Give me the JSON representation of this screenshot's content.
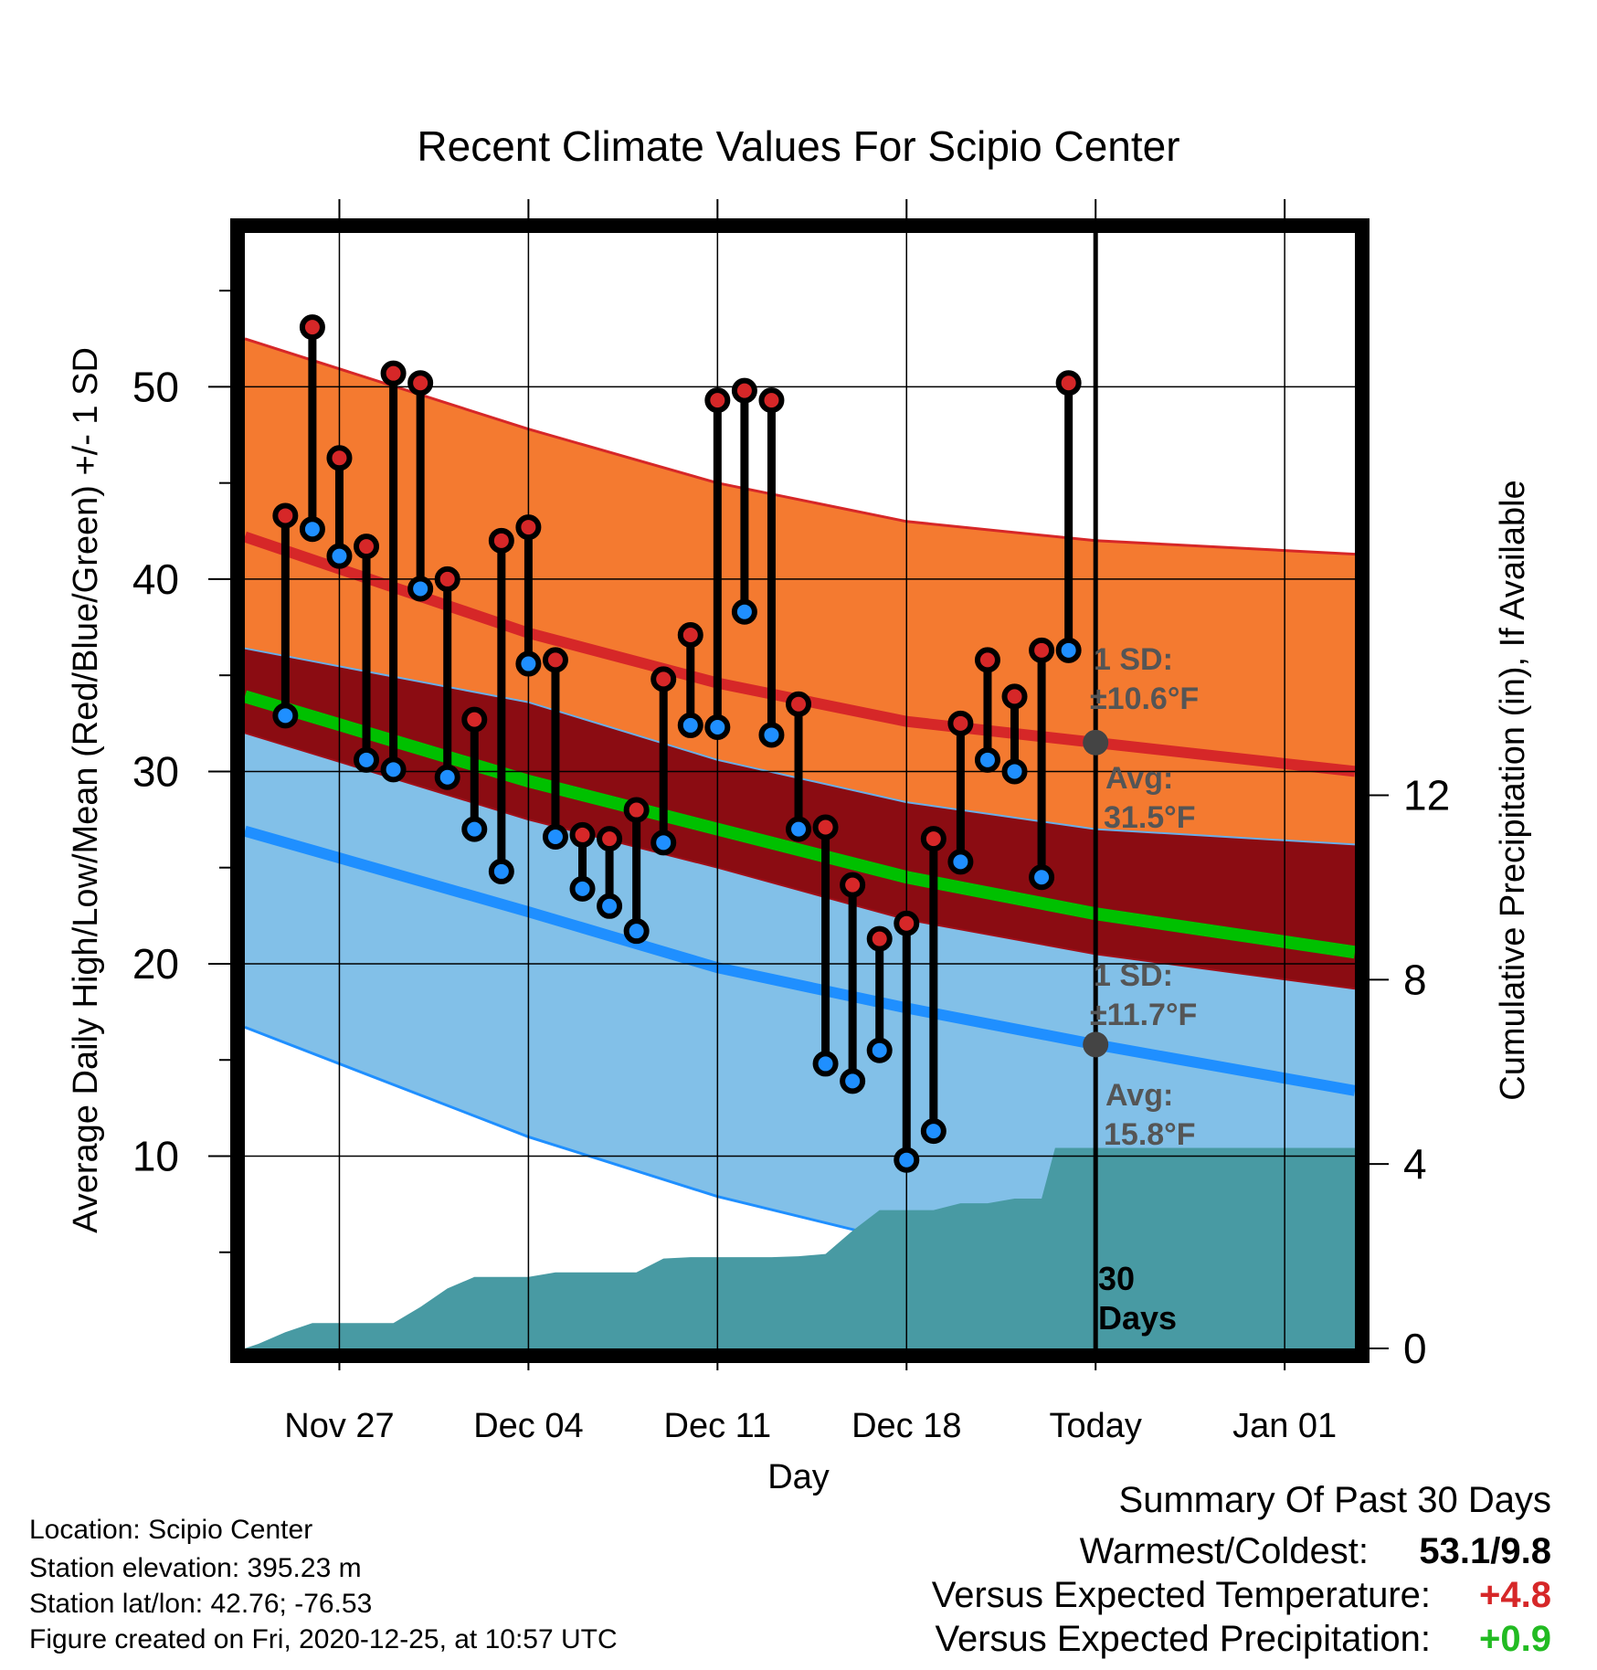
{
  "chart_data": {
    "type": "line",
    "title": "Recent Climate Values For Scipio Center",
    "xlabel": "Day",
    "ylabel": "Average Daily High/Low/Mean (Red/Blue/Green) +/- 1 SD",
    "y2label": "Cumulative Precipitation (in), If Available",
    "ylim": [
      0,
      58
    ],
    "y2lim": [
      0,
      24.2
    ],
    "y_ticks": [
      10,
      20,
      30,
      40,
      50
    ],
    "y2_ticks": [
      0,
      4,
      8,
      12
    ],
    "x_tick_labels": [
      "Nov 27",
      "Dec 04",
      "Dec 11",
      "Dec 18",
      "Today",
      "Jan 01"
    ],
    "x_tick_days": [
      -28,
      -21,
      -14,
      -7,
      0,
      7
    ],
    "x_range_days": [
      -31.5,
      9.6
    ],
    "today_marker_label": "30\nDays",
    "days": [
      -30,
      -29,
      -28,
      -27,
      -26,
      -25,
      -24,
      -23,
      -22,
      -21,
      -20,
      -19,
      -18,
      -17,
      -16,
      -15,
      -14,
      -13,
      -12,
      -11,
      -10,
      -9,
      -8,
      -7,
      -6,
      -5,
      -4,
      -3,
      -2,
      -1
    ],
    "series": [
      {
        "name": "High",
        "color": "#d62728",
        "values": [
          43.3,
          53.1,
          46.3,
          41.7,
          50.7,
          50.2,
          40.0,
          32.7,
          42.0,
          42.7,
          35.8,
          26.7,
          26.5,
          28.0,
          34.8,
          37.1,
          49.3,
          49.8,
          49.3,
          33.5,
          27.1,
          24.1,
          21.3,
          22.1,
          26.5,
          32.5,
          35.8,
          33.9,
          36.3,
          50.2
        ]
      },
      {
        "name": "Low",
        "color": "#1f8fff",
        "values": [
          32.9,
          42.6,
          41.2,
          30.6,
          30.1,
          39.5,
          29.7,
          27.0,
          24.8,
          35.6,
          26.6,
          23.9,
          23.0,
          21.7,
          26.3,
          32.4,
          32.3,
          38.3,
          31.9,
          27.0,
          14.8,
          13.9,
          15.5,
          9.8,
          11.3,
          25.3,
          30.6,
          30.0,
          24.5,
          36.3
        ]
      }
    ],
    "normals": {
      "days": [
        -31.5,
        -21,
        -14,
        -7,
        0,
        9.6
      ],
      "avg_high": [
        42.2,
        37.2,
        34.6,
        32.6,
        31.5,
        30.0
      ],
      "high_sd_upper": [
        52.5,
        47.8,
        45.0,
        43.0,
        42.0,
        41.3
      ],
      "high_sd_lower": [
        36.4,
        33.6,
        30.6,
        28.4,
        27.0,
        26.2
      ],
      "avg_mean": [
        33.9,
        29.5,
        27.0,
        24.5,
        22.6,
        20.6
      ],
      "avg_low": [
        26.9,
        22.7,
        19.8,
        17.7,
        15.8,
        13.4
      ],
      "low_sd_upper": [
        32.0,
        27.5,
        25.0,
        22.3,
        20.5,
        18.7
      ],
      "low_sd_lower": [
        16.7,
        11.0,
        7.9,
        5.5,
        3.2,
        1.0
      ]
    },
    "annotations": {
      "high_sd": "1 SD:",
      "high_sd_value": "±10.6°F",
      "high_avg": "Avg:",
      "high_avg_value": "31.5°F",
      "low_sd": "1 SD:",
      "low_sd_value": "±11.7°F",
      "low_avg": "Avg:",
      "low_avg_value": "15.8°F",
      "high_avg_marker": 31.5,
      "low_avg_marker": 15.8
    },
    "precipitation": {
      "days": [
        -31.5,
        -31,
        -30,
        -29,
        -28,
        -27,
        -26,
        -25,
        -24,
        -23,
        -22,
        -21,
        -20,
        -19,
        -18,
        -17,
        -16,
        -15,
        -14,
        -13,
        -12,
        -11,
        -10,
        -9,
        -8,
        -7,
        -6,
        -5,
        -4,
        -3,
        -2,
        -1.5,
        -1,
        0,
        9.6
      ],
      "values": [
        0.0,
        0.1,
        0.35,
        0.55,
        0.55,
        0.55,
        0.55,
        0.9,
        1.3,
        1.55,
        1.55,
        1.55,
        1.65,
        1.65,
        1.65,
        1.65,
        1.95,
        1.98,
        1.98,
        1.98,
        1.98,
        2.0,
        2.05,
        2.55,
        3.0,
        3.0,
        3.0,
        3.15,
        3.15,
        3.25,
        3.25,
        4.35,
        4.35,
        4.35,
        4.35
      ]
    },
    "colors": {
      "high_band": "#f47a30",
      "between_band": "#8b0c12",
      "low_band": "#82c0e8",
      "mean_line": "#00c000",
      "precip_fill": "#489aa3",
      "annotation_text": "#555555",
      "avg_marker": "#444444"
    },
    "grid": true
  },
  "footer": {
    "location": "Location: Scipio Center",
    "elevation": "Station elevation: 395.23 m",
    "latlon": "Station lat/lon: 42.76; -76.53",
    "created": "Figure created on Fri, 2020-12-25, at 10:57 UTC"
  },
  "summary": {
    "title": "Summary Of Past 30 Days",
    "warmest_label": "Warmest/Coldest:",
    "warmest_value": "53.1/9.8",
    "temp_label": "Versus Expected Temperature:",
    "temp_value": "+4.8",
    "temp_color": "#d62728",
    "precip_label": "Versus Expected Precipitation:",
    "precip_value": "+0.9",
    "precip_color": "#22bb22"
  }
}
